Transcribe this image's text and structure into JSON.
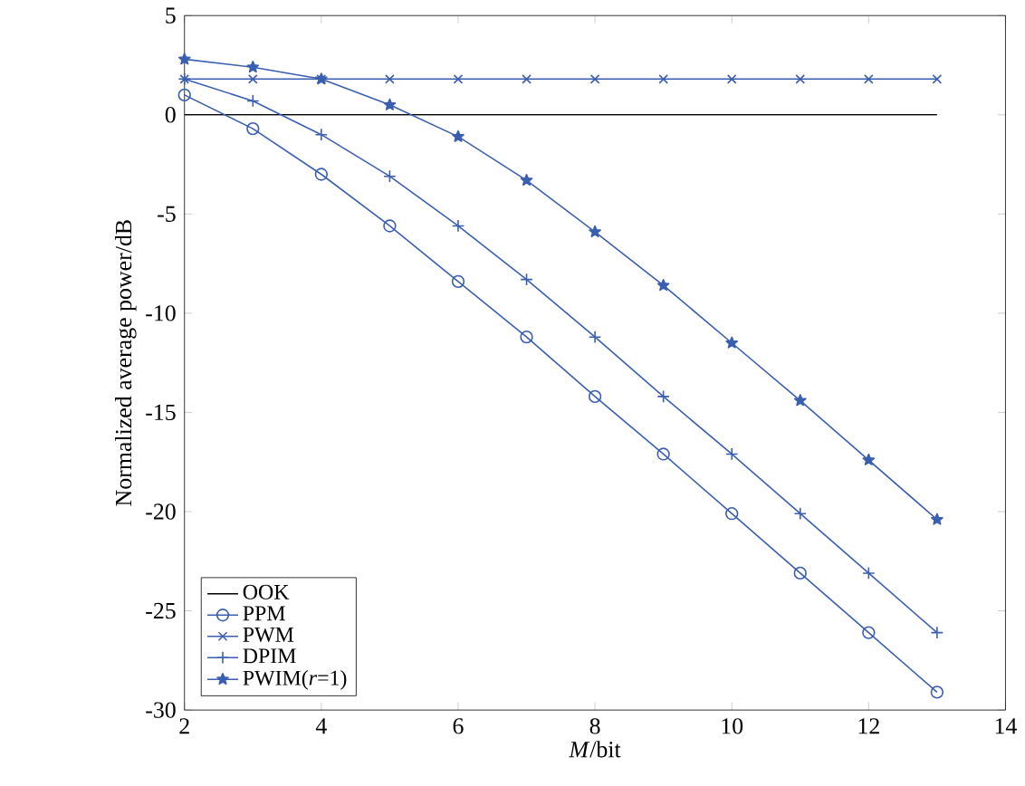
{
  "chart_data": {
    "type": "line",
    "xlabel": "*M*/bit",
    "ylabel": "Normalized average power/dB",
    "xlim": [
      2,
      14
    ],
    "ylim": [
      -30,
      5
    ],
    "xticks": [
      2,
      4,
      6,
      8,
      10,
      12,
      14
    ],
    "yticks": [
      -30,
      -25,
      -20,
      -15,
      -10,
      -5,
      0,
      5
    ],
    "grid": false,
    "legend": "bottom left",
    "line_style": "solid",
    "series": [
      {
        "name": "OOK",
        "color": "#000000",
        "marker": "none",
        "x": [
          2,
          13
        ],
        "values": [
          0,
          0
        ]
      },
      {
        "name": "PPM",
        "color": "#3a5fb0",
        "marker": "circle",
        "x": [
          2,
          3,
          4,
          5,
          6,
          7,
          8,
          9,
          10,
          11,
          12,
          13
        ],
        "values": [
          1.0,
          -0.7,
          -3.0,
          -5.6,
          -8.4,
          -11.2,
          -14.2,
          -17.1,
          -20.1,
          -23.1,
          -26.1,
          -29.1
        ]
      },
      {
        "name": "PWM",
        "color": "#3a5fb0",
        "marker": "cross",
        "x": [
          2,
          3,
          4,
          5,
          6,
          7,
          8,
          9,
          10,
          11,
          12,
          13
        ],
        "values": [
          1.8,
          1.8,
          1.8,
          1.8,
          1.8,
          1.8,
          1.8,
          1.8,
          1.8,
          1.8,
          1.8,
          1.8
        ]
      },
      {
        "name": "DPIM",
        "color": "#3a5fb0",
        "marker": "plus",
        "x": [
          2,
          3,
          4,
          5,
          6,
          7,
          8,
          9,
          10,
          11,
          12,
          13
        ],
        "values": [
          1.8,
          0.7,
          -1.0,
          -3.1,
          -5.6,
          -8.3,
          -11.2,
          -14.2,
          -17.1,
          -20.1,
          -23.1,
          -26.1
        ]
      },
      {
        "name": "PWIM(*r*=1)",
        "color": "#3a5fb0",
        "marker": "star",
        "x": [
          2,
          3,
          4,
          5,
          6,
          7,
          8,
          9,
          10,
          11,
          12,
          13
        ],
        "values": [
          2.8,
          2.4,
          1.8,
          0.5,
          -1.1,
          -3.3,
          -5.9,
          -8.6,
          -11.5,
          -14.4,
          -17.4,
          -20.4
        ]
      }
    ]
  }
}
